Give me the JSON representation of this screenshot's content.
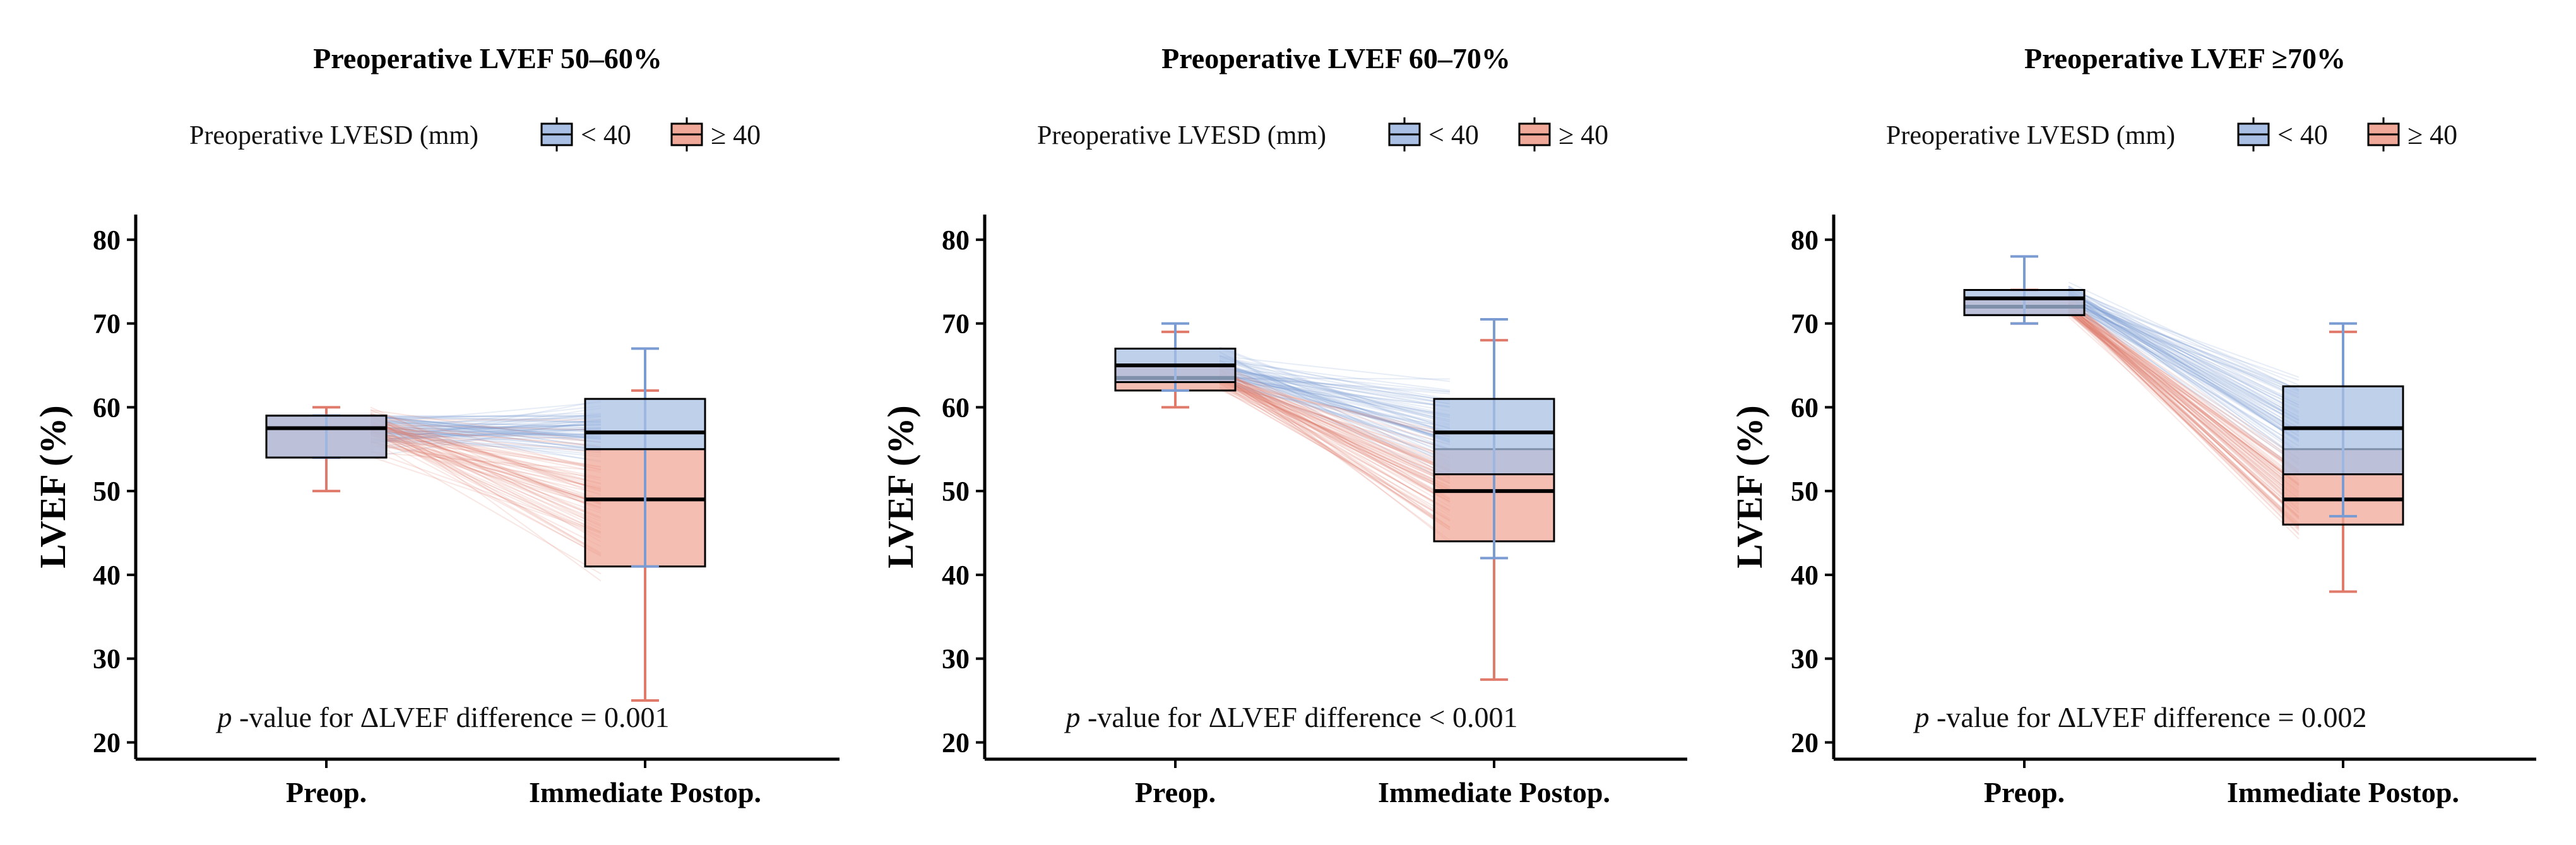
{
  "figure": {
    "ylabel": "LVEF (%)",
    "legend_title": "Preoperative LVESD (mm)",
    "legend_entries": [
      "< 40",
      "≥ 40"
    ],
    "x_categories": [
      "Preop.",
      "Immediate Postop."
    ],
    "y_ticks": [
      20,
      30,
      40,
      50,
      60,
      70,
      80
    ],
    "p_prefix": "p",
    "p_suffix": "-value for ΔLVEF difference",
    "colors": {
      "lt40_fill": "#a9c0e4",
      "lt40_line": "#7b9bd3",
      "ge40_fill": "#f0a898",
      "ge40_line": "#e07a6b",
      "axis": "#000000"
    }
  },
  "chart_data": [
    {
      "type": "box",
      "title": "Preoperative LVEF  50–60%",
      "ylim": [
        18,
        83
      ],
      "p_value_text": "= 0.001",
      "categories": [
        "Preop.",
        "Immediate Postop."
      ],
      "series": [
        {
          "name": "< 40",
          "boxes": [
            {
              "min": 54,
              "q1": 54,
              "median": 57.5,
              "q3": 59,
              "max": 59
            },
            {
              "min": 41,
              "q1": 55,
              "median": 57,
              "q3": 61,
              "max": 67
            }
          ]
        },
        {
          "name": "≥ 40",
          "boxes": [
            {
              "min": 50,
              "q1": 54,
              "median": 57.5,
              "q3": 59,
              "max": 60
            },
            {
              "min": 25,
              "q1": 41,
              "median": 49,
              "q3": 55,
              "max": 62
            }
          ]
        }
      ]
    },
    {
      "type": "box",
      "title": "Preoperative LVEF  60–70%",
      "ylim": [
        18,
        83
      ],
      "p_value_text": "< 0.001",
      "categories": [
        "Preop.",
        "Immediate Postop."
      ],
      "series": [
        {
          "name": "< 40",
          "boxes": [
            {
              "min": 62,
              "q1": 63,
              "median": 65,
              "q3": 67,
              "max": 70
            },
            {
              "min": 42,
              "q1": 52,
              "median": 57,
              "q3": 61,
              "max": 70.5
            }
          ]
        },
        {
          "name": "≥ 40",
          "boxes": [
            {
              "min": 60,
              "q1": 62,
              "median": 63.5,
              "q3": 65,
              "max": 69
            },
            {
              "min": 27.5,
              "q1": 44,
              "median": 50,
              "q3": 55,
              "max": 68
            }
          ]
        }
      ]
    },
    {
      "type": "box",
      "title": "Preoperative LVEF ≥70%",
      "ylim": [
        18,
        83
      ],
      "p_value_text": "= 0.002",
      "categories": [
        "Preop.",
        "Immediate Postop."
      ],
      "series": [
        {
          "name": "< 40",
          "boxes": [
            {
              "min": 70,
              "q1": 71,
              "median": 73,
              "q3": 74,
              "max": 78
            },
            {
              "min": 47,
              "q1": 52,
              "median": 57.5,
              "q3": 62.5,
              "max": 70
            }
          ]
        },
        {
          "name": "≥ 40",
          "boxes": [
            {
              "min": 70,
              "q1": 71,
              "median": 72,
              "q3": 73,
              "max": 74
            },
            {
              "min": 38,
              "q1": 46,
              "median": 49,
              "q3": 55,
              "max": 69
            }
          ]
        }
      ]
    }
  ]
}
